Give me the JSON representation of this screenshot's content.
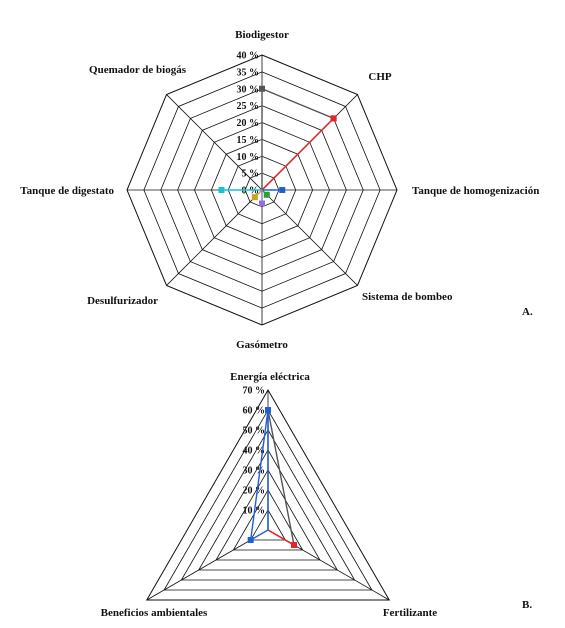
{
  "chart_data": [
    {
      "type": "radar",
      "panel_label": "A.",
      "axes": [
        "Biodigestor",
        "CHP",
        "Tanque de homogenización",
        "Sistema de bombeo",
        "Gasómetro",
        "Desulfurizador",
        "Tanque de digestato",
        "Quemador de biogás"
      ],
      "ticks": [
        "0 %",
        "5 %",
        "10 %",
        "15 %",
        "20 %",
        "25 %",
        "30 %",
        "35 %",
        "40 %"
      ],
      "rmax": 40,
      "grid": true,
      "series": [
        {
          "color": "#555555",
          "values": [
            30,
            30,
            0,
            0,
            0,
            0,
            0,
            0
          ]
        },
        {
          "color": "#e8242a",
          "values": [
            0,
            30,
            0,
            0,
            0,
            0,
            0,
            0
          ]
        },
        {
          "color": "#1f5fd6",
          "values": [
            0,
            0,
            6,
            0,
            0,
            0,
            0,
            0
          ]
        },
        {
          "color": "#2ca02c",
          "values": [
            0,
            0,
            0,
            2,
            0,
            0,
            0,
            0
          ]
        },
        {
          "color": "#9370db",
          "values": [
            0,
            0,
            0,
            0,
            4,
            0,
            0,
            0
          ]
        },
        {
          "color": "#d4a017",
          "values": [
            0,
            0,
            0,
            0,
            0,
            3,
            0,
            0
          ]
        },
        {
          "color": "#17c2d6",
          "values": [
            0,
            0,
            0,
            0,
            0,
            0,
            12,
            0
          ]
        },
        {
          "color": "#8b4513",
          "values": [
            0,
            0,
            0,
            0,
            0,
            0,
            0,
            0
          ]
        }
      ]
    },
    {
      "type": "radar",
      "panel_label": "B.",
      "axes": [
        "Energía eléctrica",
        "Fertilizante",
        "Beneficios ambientales"
      ],
      "ticks": [
        "10 %",
        "20 %",
        "30 %",
        "40 %",
        "50 %",
        "60 %",
        "70 %"
      ],
      "rmax": 70,
      "grid": true,
      "series": [
        {
          "color": "#555555",
          "values": [
            60,
            15,
            0
          ]
        },
        {
          "color": "#e8242a",
          "values": [
            0,
            15,
            0
          ]
        },
        {
          "color": "#1f5fd6",
          "values": [
            60,
            0,
            10
          ]
        }
      ]
    }
  ]
}
